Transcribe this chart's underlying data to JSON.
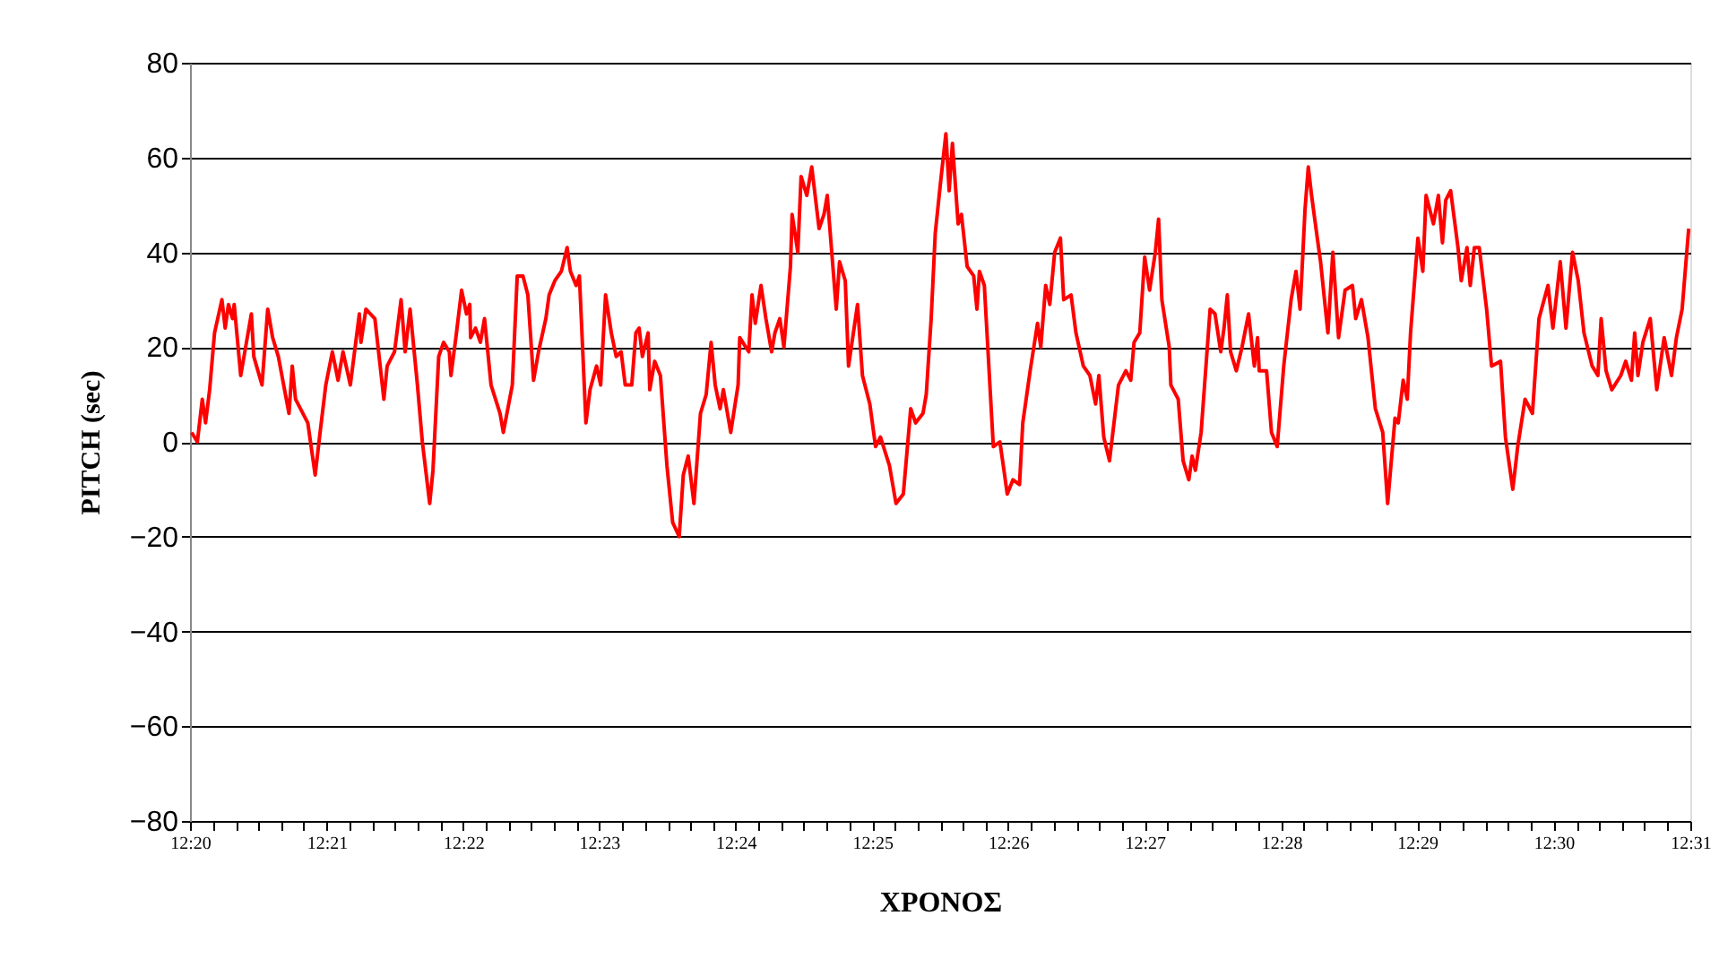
{
  "chart_data": {
    "type": "line",
    "xlabel": "ΧΡΟΝΟΣ",
    "ylabel": "PITCH (sec)",
    "xlim": [
      12.3333,
      12.5167
    ],
    "ylim": [
      -80,
      80
    ],
    "yticks": [
      -80,
      -60,
      -40,
      -20,
      0,
      20,
      40,
      60,
      80
    ],
    "xticks": [
      {
        "value": 12.3333,
        "label": "12:20"
      },
      {
        "value": 12.35,
        "label": "12:21"
      },
      {
        "value": 12.3667,
        "label": "12:22"
      },
      {
        "value": 12.3833,
        "label": "12:23"
      },
      {
        "value": 12.4,
        "label": "12:24"
      },
      {
        "value": 12.4167,
        "label": "12:25"
      },
      {
        "value": 12.4333,
        "label": "12:26"
      },
      {
        "value": 12.45,
        "label": "12:27"
      },
      {
        "value": 12.4667,
        "label": "12:28"
      },
      {
        "value": 12.4833,
        "label": "12:29"
      },
      {
        "value": 12.5,
        "label": "12:30"
      },
      {
        "value": 12.5167,
        "label": "12:31"
      },
      {
        "value": 12.3361,
        "label": null
      },
      {
        "value": 12.3389,
        "label": null
      },
      {
        "value": 12.3417,
        "label": null
      },
      {
        "value": 12.3444,
        "label": null
      },
      {
        "value": 12.3472,
        "label": null
      },
      {
        "value": 12.3528,
        "label": null
      },
      {
        "value": 12.3556,
        "label": null
      },
      {
        "value": 12.3583,
        "label": null
      },
      {
        "value": 12.3611,
        "label": null
      },
      {
        "value": 12.3639,
        "label": null
      },
      {
        "value": 12.3694,
        "label": null
      },
      {
        "value": 12.3722,
        "label": null
      },
      {
        "value": 12.375,
        "label": null
      },
      {
        "value": 12.3778,
        "label": null
      },
      {
        "value": 12.3806,
        "label": null
      },
      {
        "value": 12.3861,
        "label": null
      },
      {
        "value": 12.3889,
        "label": null
      },
      {
        "value": 12.3917,
        "label": null
      },
      {
        "value": 12.3944,
        "label": null
      },
      {
        "value": 12.3972,
        "label": null
      },
      {
        "value": 12.4028,
        "label": null
      },
      {
        "value": 12.4056,
        "label": null
      },
      {
        "value": 12.4083,
        "label": null
      },
      {
        "value": 12.4111,
        "label": null
      },
      {
        "value": 12.4139,
        "label": null
      },
      {
        "value": 12.4194,
        "label": null
      },
      {
        "value": 12.4222,
        "label": null
      },
      {
        "value": 12.425,
        "label": null
      },
      {
        "value": 12.4278,
        "label": null
      },
      {
        "value": 12.4306,
        "label": null
      },
      {
        "value": 12.4361,
        "label": null
      },
      {
        "value": 12.4389,
        "label": null
      },
      {
        "value": 12.4417,
        "label": null
      },
      {
        "value": 12.4444,
        "label": null
      },
      {
        "value": 12.4472,
        "label": null
      },
      {
        "value": 12.4528,
        "label": null
      },
      {
        "value": 12.4556,
        "label": null
      },
      {
        "value": 12.4583,
        "label": null
      },
      {
        "value": 12.4611,
        "label": null
      },
      {
        "value": 12.4639,
        "label": null
      },
      {
        "value": 12.4694,
        "label": null
      },
      {
        "value": 12.4722,
        "label": null
      },
      {
        "value": 12.475,
        "label": null
      },
      {
        "value": 12.4778,
        "label": null
      },
      {
        "value": 12.4806,
        "label": null
      },
      {
        "value": 12.4861,
        "label": null
      },
      {
        "value": 12.4889,
        "label": null
      },
      {
        "value": 12.4917,
        "label": null
      },
      {
        "value": 12.4944,
        "label": null
      },
      {
        "value": 12.4972,
        "label": null
      },
      {
        "value": 12.5028,
        "label": null
      },
      {
        "value": 12.5056,
        "label": null
      },
      {
        "value": 12.5083,
        "label": null
      },
      {
        "value": 12.5111,
        "label": null
      },
      {
        "value": 12.5139,
        "label": null
      }
    ],
    "grid": "y",
    "line_style": "solid",
    "x": [
      12.3335,
      12.3342,
      12.3348,
      12.3352,
      12.3357,
      12.3363,
      12.3372,
      12.3376,
      12.338,
      12.3385,
      12.3387,
      12.3395,
      12.3408,
      12.3411,
      12.3421,
      12.3428,
      12.3434,
      12.3441,
      12.3454,
      12.3458,
      12.3462,
      12.3477,
      12.3486,
      12.3492,
      12.3499,
      12.3507,
      12.3514,
      12.352,
      12.3529,
      12.354,
      12.3542,
      12.3548,
      12.3559,
      12.357,
      12.3574,
      12.3583,
      12.3591,
      12.3596,
      12.3602,
      12.3611,
      12.3617,
      12.3626,
      12.363,
      12.3637,
      12.3643,
      12.365,
      12.3652,
      12.3658,
      12.3665,
      12.3671,
      12.3675,
      12.3676,
      12.3682,
      12.3688,
      12.3693,
      12.3701,
      12.3712,
      12.3716,
      12.3727,
      12.3733,
      12.374,
      12.3746,
      12.3753,
      12.3759,
      12.3768,
      12.3772,
      12.3779,
      12.3787,
      12.3794,
      12.3798,
      12.3805,
      12.3809,
      12.3817,
      12.3822,
      12.383,
      12.3835,
      12.3841,
      12.3848,
      12.3854,
      12.386,
      12.3865,
      12.3873,
      12.3878,
      12.3882,
      12.3886,
      12.3893,
      12.3895,
      12.3901,
      12.3908,
      12.3916,
      12.3923,
      12.3931,
      12.3936,
      12.3942,
      12.3949,
      12.3957,
      12.3964,
      12.397,
      12.3975,
      12.3981,
      12.3985,
      12.3994,
      12.4003,
      12.4005,
      12.4016,
      12.402,
      12.4024,
      12.4031,
      12.4037,
      12.4044,
      12.4048,
      12.4054,
      12.4059,
      12.4067,
      12.4069,
      12.4076,
      12.408,
      12.4087,
      12.4093,
      12.4102,
      12.4108,
      12.4112,
      12.4117,
      12.4123,
      12.4127,
      12.4134,
      12.4138,
      12.4149,
      12.4155,
      12.4164,
      12.4171,
      12.4177,
      12.4188,
      12.4196,
      12.4205,
      12.4214,
      12.422,
      12.4229,
      12.4233,
      12.4239,
      12.4244,
      12.425,
      12.4257,
      12.4261,
      12.4265,
      12.4272,
      12.4276,
      12.4283,
      12.4291,
      12.4295,
      12.4298,
      12.4304,
      12.4315,
      12.4323,
      12.4328,
      12.4332,
      12.4339,
      12.4347,
      12.4351,
      12.436,
      12.4369,
      12.4373,
      12.4379,
      12.4384,
      12.439,
      12.4397,
      12.4401,
      12.441,
      12.4416,
      12.4425,
      12.4433,
      12.444,
      12.4444,
      12.445,
      12.4457,
      12.4468,
      12.4477,
      12.4483,
      12.4487,
      12.4494,
      12.45,
      12.4506,
      12.4513,
      12.4517,
      12.4521,
      12.453,
      12.4532,
      12.4541,
      12.4547,
      12.4554,
      12.4558,
      12.4562,
      12.4569,
      12.458,
      12.4586,
      12.4593,
      12.4597,
      12.4601,
      12.4605,
      12.4612,
      12.4619,
      12.4627,
      12.4634,
      12.4638,
      12.464,
      12.4649,
      12.4655,
      12.4662,
      12.467,
      12.4679,
      12.4685,
      12.469,
      12.4696,
      12.47,
      12.4704,
      12.4711,
      12.4715,
      12.4724,
      12.473,
      12.4737,
      12.4745,
      12.4754,
      12.4758,
      12.4765,
      12.4773,
      12.4782,
      12.4791,
      12.4797,
      12.4806,
      12.481,
      12.4816,
      12.4821,
      12.4825,
      12.4834,
      12.484,
      12.4844,
      12.4853,
      12.4859,
      12.4864,
      12.4868,
      12.4874,
      12.4883,
      12.4887,
      12.4894,
      12.4898,
      12.4903,
      12.4909,
      12.4918,
      12.4924,
      12.4935,
      12.4941,
      12.495,
      12.4956,
      12.4965,
      12.4974,
      12.4982,
      12.4993,
      12.4999,
      12.5008,
      12.5015,
      12.5023,
      12.503,
      12.5037,
      12.5047,
      12.5054,
      12.5058,
      12.5064,
      12.5071,
      12.5082,
      12.5088,
      12.5095,
      12.5099,
      12.5103,
      12.5109,
      12.5118,
      12.5126,
      12.5135,
      12.5144,
      12.515,
      12.5157,
      12.5165
    ],
    "series": [
      {
        "color": "#ff0000",
        "values": [
          2,
          0,
          9,
          4,
          11,
          23,
          30,
          24,
          29,
          26,
          29,
          14,
          27,
          18,
          12,
          28,
          22,
          18,
          6,
          16,
          9,
          4,
          -7,
          2,
          12,
          19,
          13,
          19,
          12,
          27,
          21,
          28,
          26,
          9,
          16,
          19,
          30,
          19,
          28,
          12,
          0,
          -13,
          -6,
          18,
          21,
          19,
          14,
          22,
          32,
          27,
          29,
          22,
          24,
          21,
          26,
          12,
          6,
          2,
          12,
          35,
          35,
          31,
          13,
          19,
          26,
          31,
          34,
          36,
          41,
          36,
          33,
          35,
          4,
          11,
          16,
          12,
          31,
          23,
          18,
          19,
          12,
          12,
          23,
          24,
          18,
          23,
          11,
          17,
          14,
          -5,
          -17,
          -20,
          -7,
          -3,
          -13,
          6,
          10,
          21,
          12,
          7,
          11,
          2,
          12,
          22,
          19,
          31,
          25,
          33,
          26,
          19,
          23,
          26,
          20,
          37,
          48,
          40,
          56,
          52,
          58,
          45,
          48,
          52,
          41,
          28,
          38,
          34,
          16,
          29,
          14,
          8,
          -1,
          1,
          -5,
          -13,
          -11,
          7,
          4,
          6,
          10,
          26,
          44,
          54,
          65,
          53,
          63,
          46,
          48,
          37,
          35,
          28,
          36,
          33,
          -1,
          0,
          -6,
          -11,
          -8,
          -9,
          4,
          15,
          25,
          20,
          33,
          29,
          40,
          43,
          30,
          31,
          23,
          16,
          14,
          8,
          14,
          1,
          -4,
          12,
          15,
          13,
          21,
          23,
          39,
          32,
          40,
          47,
          30,
          20,
          12,
          9,
          -4,
          -8,
          -3,
          -6,
          2,
          28,
          27,
          19,
          24,
          31,
          19,
          15,
          20,
          27,
          16,
          22,
          15,
          15,
          2,
          -1,
          16,
          30,
          36,
          28,
          49,
          58,
          52,
          43,
          38,
          23,
          40,
          22,
          32,
          33,
          26,
          30,
          22,
          7,
          2,
          -13,
          5,
          4,
          13,
          9,
          23,
          43,
          36,
          52,
          46,
          52,
          42,
          51,
          53,
          41,
          34,
          41,
          33,
          41,
          41,
          28,
          16,
          17,
          1,
          -10,
          -1,
          9,
          6,
          26,
          33,
          24,
          38,
          24,
          40,
          34,
          23,
          16,
          14,
          26,
          15,
          11,
          14,
          17,
          13,
          23,
          14,
          21,
          26,
          11,
          22,
          14,
          22,
          28,
          45
        ]
      }
    ]
  }
}
